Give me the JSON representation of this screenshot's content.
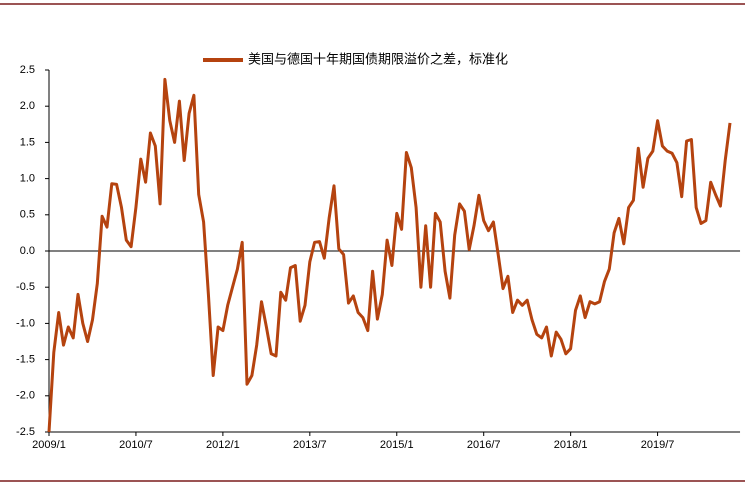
{
  "chart_data": {
    "type": "line",
    "categories": [
      "2009/1",
      null,
      null,
      null,
      null,
      null,
      null,
      null,
      null,
      null,
      null,
      null,
      null,
      null,
      null,
      null,
      null,
      null,
      "2010/7",
      null,
      null,
      null,
      null,
      null,
      null,
      null,
      null,
      null,
      null,
      null,
      null,
      null,
      null,
      null,
      null,
      null,
      "2012/1",
      null,
      null,
      null,
      null,
      null,
      null,
      null,
      null,
      null,
      null,
      null,
      null,
      null,
      null,
      null,
      null,
      null,
      "2013/7",
      null,
      null,
      null,
      null,
      null,
      null,
      null,
      null,
      null,
      null,
      null,
      null,
      null,
      null,
      null,
      null,
      null,
      "2015/1",
      null,
      null,
      null,
      null,
      null,
      null,
      null,
      null,
      null,
      null,
      null,
      null,
      null,
      null,
      null,
      null,
      null,
      "2016/7",
      null,
      null,
      null,
      null,
      null,
      null,
      null,
      null,
      null,
      null,
      null,
      null,
      null,
      null,
      null,
      null,
      null,
      "2018/1",
      null,
      null,
      null,
      null,
      null,
      null,
      null,
      null,
      null,
      null,
      null,
      null,
      null,
      null,
      null,
      null,
      null,
      "2019/7",
      null,
      null,
      null,
      null,
      null,
      null,
      null,
      null,
      null,
      null,
      null,
      null,
      null,
      null,
      null
    ],
    "series": [
      {
        "name": "美国与德国十年期国债期限溢价之差，标准化",
        "color": "#b5430f",
        "values": [
          -2.5,
          -1.4,
          -0.85,
          -1.3,
          -1.05,
          -1.2,
          -0.6,
          -1.0,
          -1.25,
          -0.95,
          -0.45,
          0.48,
          0.33,
          0.93,
          0.92,
          0.6,
          0.15,
          0.06,
          0.6,
          1.27,
          0.95,
          1.63,
          1.45,
          0.65,
          2.37,
          1.8,
          1.5,
          2.07,
          1.25,
          1.9,
          2.15,
          0.78,
          0.4,
          -0.6,
          -1.72,
          -1.05,
          -1.1,
          -0.75,
          -0.5,
          -0.25,
          0.12,
          -1.84,
          -1.72,
          -1.3,
          -0.7,
          -1.05,
          -1.42,
          -1.45,
          -0.57,
          -0.68,
          -0.23,
          -0.2,
          -0.97,
          -0.75,
          -0.15,
          0.12,
          0.13,
          -0.1,
          0.45,
          0.9,
          0.03,
          -0.05,
          -0.72,
          -0.62,
          -0.85,
          -0.92,
          -1.1,
          -0.28,
          -0.94,
          -0.6,
          0.15,
          -0.2,
          0.52,
          0.3,
          1.36,
          1.15,
          0.6,
          -0.5,
          0.35,
          -0.5,
          0.52,
          0.4,
          -0.28,
          -0.65,
          0.22,
          0.65,
          0.55,
          0.02,
          0.35,
          0.77,
          0.42,
          0.28,
          0.4,
          -0.05,
          -0.52,
          -0.35,
          -0.85,
          -0.68,
          -0.75,
          -0.68,
          -0.95,
          -1.15,
          -1.2,
          -1.05,
          -1.45,
          -1.12,
          -1.22,
          -1.42,
          -1.35,
          -0.82,
          -0.62,
          -0.92,
          -0.7,
          -0.73,
          -0.7,
          -0.42,
          -0.25,
          0.25,
          0.45,
          0.1,
          0.6,
          0.7,
          1.42,
          0.88,
          1.28,
          1.38,
          1.8,
          1.45,
          1.38,
          1.35,
          1.22,
          0.75,
          1.52,
          1.54,
          0.6,
          0.38,
          0.42,
          0.95,
          0.78,
          0.62,
          1.25,
          1.77
        ]
      }
    ],
    "ylim": [
      -2.5,
      2.5
    ],
    "yticks": [
      2.5,
      {
        "value": 2.0,
        "label": "2.0"
      },
      1.5,
      {
        "value": 1.0,
        "label": "1.0"
      },
      0.5,
      {
        "value": 0.0,
        "label": "0.0"
      },
      -0.5,
      {
        "value": -1.0,
        "label": "-1.0"
      },
      -1.5,
      {
        "value": -2.0,
        "label": "-2.0"
      },
      -2.5
    ],
    "legend": "top"
  }
}
